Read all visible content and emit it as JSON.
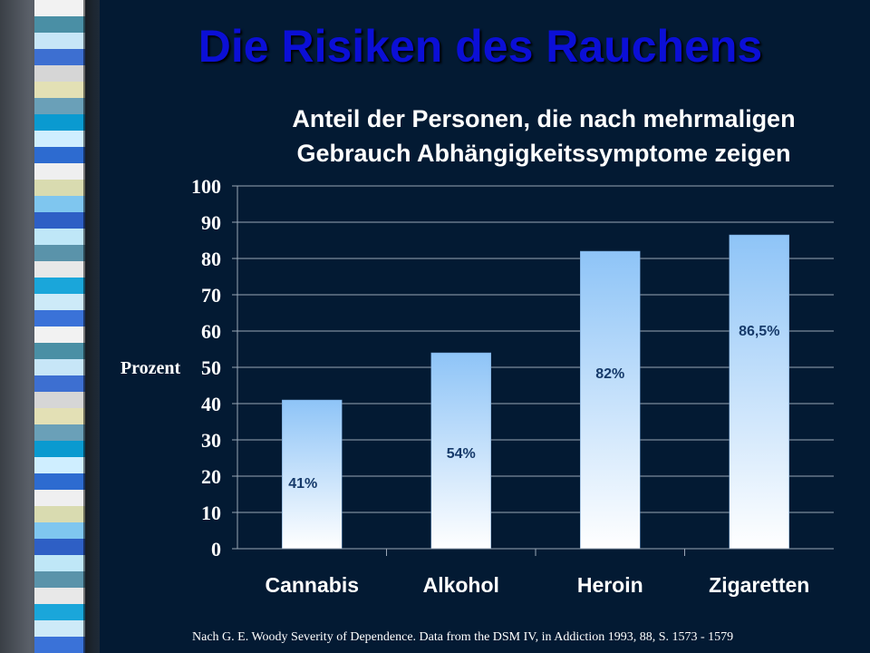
{
  "slide": {
    "title": "Die Risiken des Rauchens",
    "source": "Nach  G. E. Woody  Severity of Dependence. Data from the DSM IV,  in Addiction 1993, 88, S. 1573 - 1579"
  },
  "colors": {
    "background": "#031a33",
    "title": "#0b0fd6",
    "bar_top": "#8ec4f7",
    "bar_bottom": "#ffffff",
    "data_label": "#163a6a",
    "stripes": [
      "#f2f2f2",
      "#4a8fa5",
      "#c7e6f7",
      "#3d6fd1",
      "#d6d6d6",
      "#e3e0b5",
      "#6aa0b8",
      "#0a9ad0",
      "#cfeeff",
      "#2d6bd0",
      "#efeff0",
      "#d9dbb0",
      "#7fc6ef",
      "#2e5fc5",
      "#bfe7f7",
      "#5a93aa",
      "#e8e8e8",
      "#1aa6da",
      "#cdeaf8",
      "#3a72d8"
    ]
  },
  "chart_data": {
    "type": "bar",
    "title": "Anteil der Personen, die nach mehrmaligen Gebrauch Abhängigkeitssymptome zeigen",
    "title_lines": [
      "Anteil der Personen, die nach mehrmaligen",
      "Gebrauch Abhängigkeitssymptome zeigen"
    ],
    "categories": [
      "Cannabis",
      "Alkohol",
      "Heroin",
      "Zigaretten"
    ],
    "values": [
      41,
      54,
      82,
      86.5
    ],
    "data_labels": [
      "41%",
      "54%",
      "82%",
      "86,5%"
    ],
    "xlabel": "",
    "ylabel": "Prozent",
    "ylim": [
      0,
      100
    ],
    "yticks": [
      0,
      10,
      20,
      30,
      40,
      50,
      60,
      70,
      80,
      90,
      100
    ],
    "grid": true
  }
}
